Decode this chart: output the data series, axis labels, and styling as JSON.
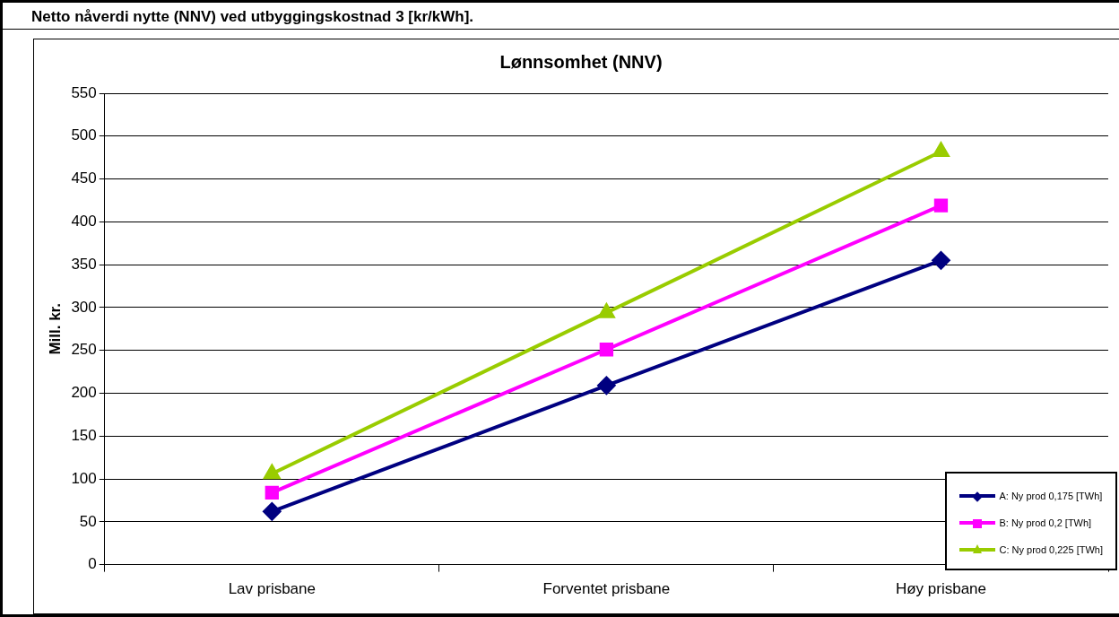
{
  "chart_data": {
    "type": "line",
    "title": "Lønnsomhet (NNV)",
    "subtitle": "Netto nåverdi nytte (NNV) ved utbyggingskostnad 3 [kr/kWh].",
    "ylabel": "Mill. kr.",
    "categories": [
      "Lav prisbane",
      "Forventet prisbane",
      "Høy prisbane"
    ],
    "series": [
      {
        "name": "A: Ny prod 0,175 [TWh]",
        "color": "#000080",
        "marker": "diamond",
        "values": [
          62,
          209,
          355
        ]
      },
      {
        "name": "B: Ny prod 0,2 [TWh]",
        "color": "#ff00ff",
        "marker": "square",
        "values": [
          84,
          251,
          419
        ]
      },
      {
        "name": "C: Ny prod 0,225 [TWh]",
        "color": "#99cc00",
        "marker": "triangle",
        "values": [
          106,
          294,
          482
        ]
      }
    ],
    "ylim": [
      0,
      550
    ],
    "yticks": [
      0,
      50,
      100,
      150,
      200,
      250,
      300,
      350,
      400,
      450,
      500,
      550
    ],
    "grid": "y",
    "legend": "bottom right",
    "line_style": "solid"
  }
}
